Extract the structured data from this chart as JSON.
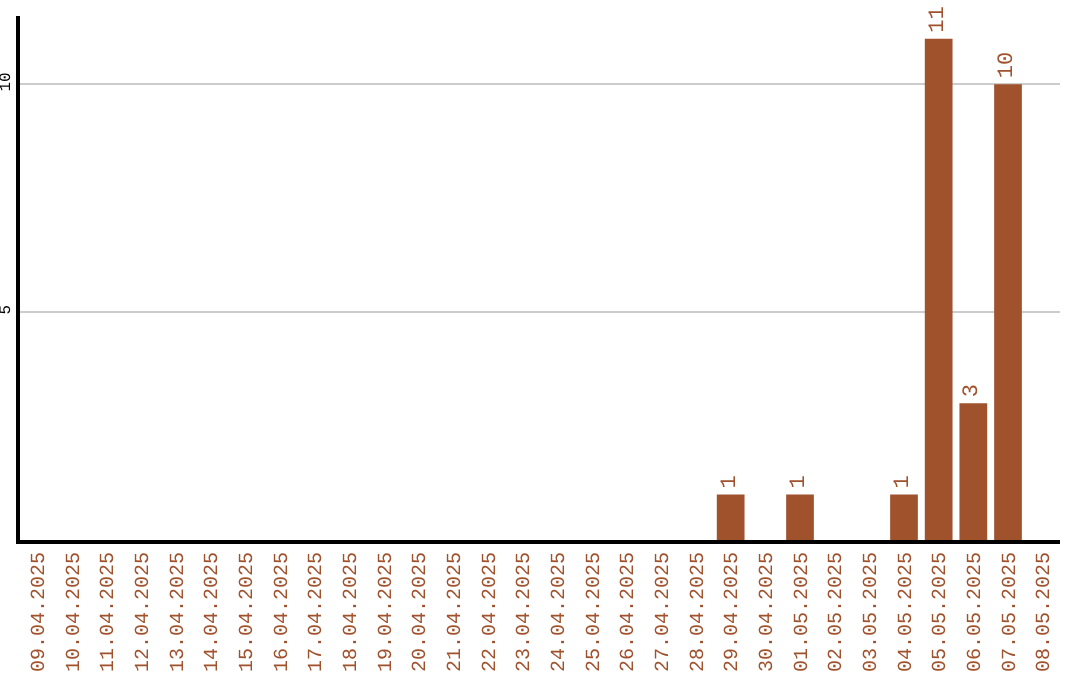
{
  "chart_data": {
    "type": "bar",
    "categories": [
      "09.04.2025",
      "10.04.2025",
      "11.04.2025",
      "12.04.2025",
      "13.04.2025",
      "14.04.2025",
      "15.04.2025",
      "16.04.2025",
      "17.04.2025",
      "18.04.2025",
      "19.04.2025",
      "20.04.2025",
      "21.04.2025",
      "22.04.2025",
      "23.04.2025",
      "24.04.2025",
      "25.04.2025",
      "26.04.2025",
      "27.04.2025",
      "28.04.2025",
      "29.04.2025",
      "30.04.2025",
      "01.05.2025",
      "02.05.2025",
      "03.05.2025",
      "04.05.2025",
      "05.05.2025",
      "06.05.2025",
      "07.05.2025",
      "08.05.2025"
    ],
    "values": [
      0,
      0,
      0,
      0,
      0,
      0,
      0,
      0,
      0,
      0,
      0,
      0,
      0,
      0,
      0,
      0,
      0,
      0,
      0,
      0,
      1,
      0,
      1,
      0,
      0,
      1,
      11,
      3,
      10,
      0
    ],
    "value_labels": [
      null,
      null,
      null,
      null,
      null,
      null,
      null,
      null,
      null,
      null,
      null,
      null,
      null,
      null,
      null,
      null,
      null,
      null,
      null,
      null,
      "1",
      null,
      "1",
      null,
      null,
      "1",
      "11",
      "3",
      "10",
      null
    ],
    "color": "#a0522d",
    "ylim": [
      0,
      11.5
    ],
    "yticks": [
      5,
      10
    ],
    "grid": "y"
  }
}
